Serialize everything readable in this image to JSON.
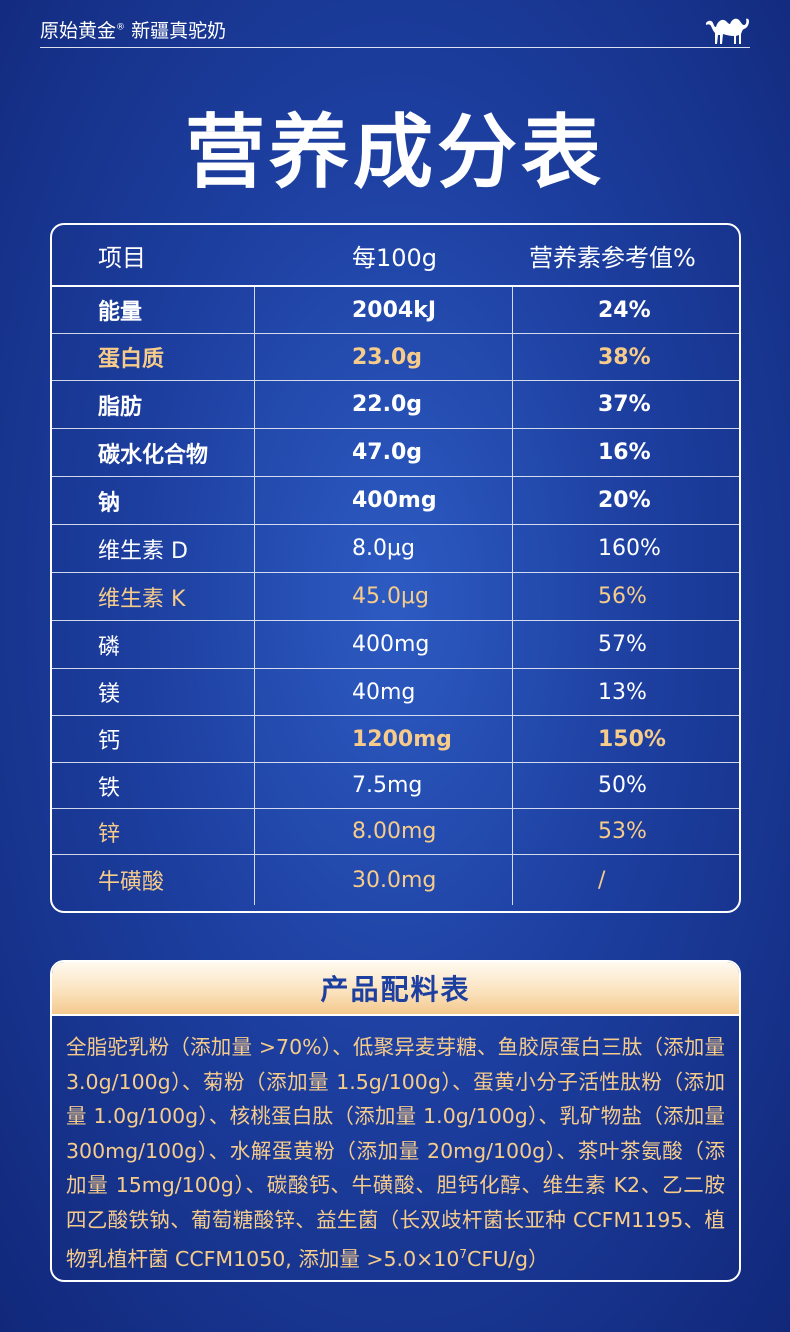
{
  "header": {
    "brand": "原始黄金",
    "brand_mark": "®",
    "product": "新疆真驼奶",
    "logo_icon": "camel-icon"
  },
  "title": "营养成分表",
  "nutrition": {
    "headers": [
      "项目",
      "每100g",
      "营养素参考值%"
    ],
    "rows": [
      {
        "item": "能量",
        "value": "2004kJ",
        "nrv": "24%",
        "bold": true,
        "gold": false
      },
      {
        "item": "蛋白质",
        "value": "23.0g",
        "nrv": "38%",
        "bold": true,
        "gold": true
      },
      {
        "item": "脂肪",
        "value": "22.0g",
        "nrv": "37%",
        "bold": true,
        "gold": false
      },
      {
        "item": "碳水化合物",
        "value": "47.0g",
        "nrv": "16%",
        "bold": true,
        "gold": false
      },
      {
        "item": "钠",
        "value": "400mg",
        "nrv": "20%",
        "bold": true,
        "gold": false
      },
      {
        "item": "维生素 D",
        "value": "8.0μg",
        "nrv": "160%",
        "bold": false,
        "gold": false
      },
      {
        "item": "维生素 K",
        "value": "45.0μg",
        "nrv": "56%",
        "bold": false,
        "gold": true
      },
      {
        "item": "磷",
        "value": "400mg",
        "nrv": "57%",
        "bold": false,
        "gold": false
      },
      {
        "item": "镁",
        "value": "40mg",
        "nrv": "13%",
        "bold": false,
        "gold": false
      },
      {
        "item": "钙",
        "value": "1200mg",
        "nrv": "150%",
        "bold": false,
        "gold": false,
        "highlight": true
      },
      {
        "item": "铁",
        "value": "7.5mg",
        "nrv": "50%",
        "bold": false,
        "gold": false
      },
      {
        "item": "锌",
        "value": "8.00mg",
        "nrv": "53%",
        "bold": false,
        "gold": true
      },
      {
        "item": "牛磺酸",
        "value": "30.0mg",
        "nrv": "/",
        "bold": false,
        "gold": true
      }
    ]
  },
  "ingredients": {
    "title": "产品配料表",
    "text_before_sup": "全脂驼乳粉（添加量 >70%）、低聚异麦芽糖、鱼胶原蛋白三肽（添加量 3.0g/100g）、菊粉（添加量 1.5g/100g）、蛋黄小分子活性肽粉（添加量 1.0g/100g）、核桃蛋白肽（添加量 1.0g/100g）、乳矿物盐（添加量300mg/100g）、水解蛋黄粉（添加量 20mg/100g）、茶叶茶氨酸（添加量 15mg/100g）、碳酸钙、牛磺酸、胆钙化醇、维生素 K2、乙二胺四乙酸铁钠、葡萄糖酸锌、益生菌（长双歧杆菌长亚种 CCFM1195、植物乳植杆菌 CCFM1050, 添加量 >5.0×10",
    "sup": "7",
    "text_after_sup": "CFU/g）"
  },
  "colors": {
    "background": "#1d3fa0",
    "gold": "#f7cc8a",
    "white": "#ffffff"
  }
}
